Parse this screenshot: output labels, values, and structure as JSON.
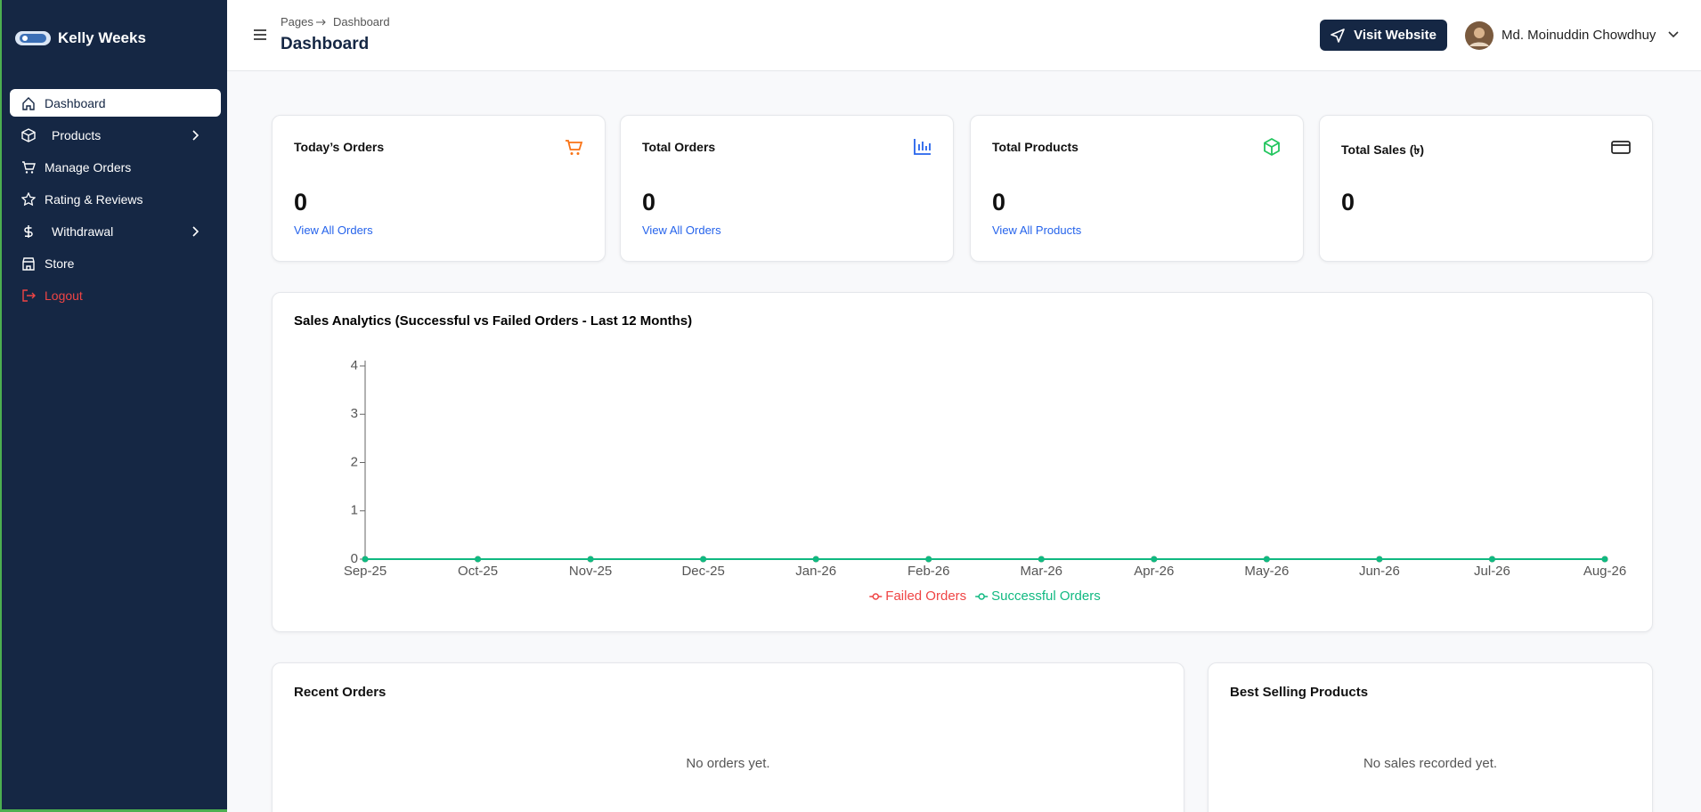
{
  "sidebar": {
    "brand": "Kelly Weeks",
    "nav": [
      "Dashboard",
      "Products",
      "Manage Orders",
      "Rating & Reviews",
      "Withdrawal",
      "Store",
      "Logout"
    ]
  },
  "header": {
    "breadcrumb": [
      "Pages",
      "Dashboard"
    ],
    "title": "Dashboard",
    "visit_button": "Visit Website",
    "user_name": "Md. Moinuddin Chowdhuy"
  },
  "cards": [
    {
      "title": "Today’s Orders",
      "value": 0,
      "link": "View All Orders"
    },
    {
      "title": "Total Orders",
      "value": 0,
      "link": "View All Orders"
    },
    {
      "title": "Total Products",
      "value": 0,
      "link": "View All Products"
    },
    {
      "title": "Total Sales (৳)",
      "value": 0
    }
  ],
  "chart_data": {
    "type": "line",
    "title": "Sales Analytics (Successful vs Failed Orders - Last 12 Months)",
    "categories": [
      "Sep-25",
      "Oct-25",
      "Nov-25",
      "Dec-25",
      "Jan-26",
      "Feb-26",
      "Mar-26",
      "Apr-26",
      "May-26",
      "Jun-26",
      "Jul-26",
      "Aug-26"
    ],
    "series": [
      {
        "name": "Failed Orders",
        "color": "#ef4444",
        "values": [
          0,
          0,
          0,
          0,
          0,
          0,
          0,
          0,
          0,
          0,
          0,
          0
        ]
      },
      {
        "name": "Successful Orders",
        "color": "#10b981",
        "values": [
          0,
          0,
          0,
          0,
          0,
          0,
          0,
          0,
          0,
          0,
          0,
          0
        ]
      }
    ],
    "ylim": [
      0,
      4
    ],
    "yticks": [
      0,
      1,
      2,
      3,
      4
    ],
    "legend": "bottom"
  },
  "recent_orders": {
    "title": "Recent Orders",
    "empty": "No orders yet."
  },
  "best_selling": {
    "title": "Best Selling Products",
    "empty": "No sales recorded yet."
  }
}
